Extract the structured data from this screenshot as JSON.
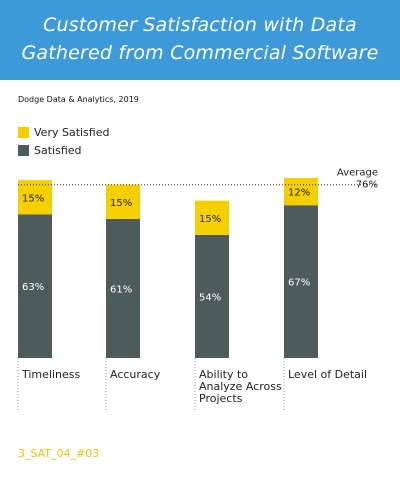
{
  "header": {
    "title_line1": "Customer Satisfaction with Data",
    "title_line2": "Gathered from Commercial Software"
  },
  "source": "Dodge Data & Analytics, 2019",
  "legend": {
    "very_satisfied": "Very Satisfied",
    "satisfied": "Satisfied"
  },
  "average": {
    "label": "Average",
    "value_label": "76%",
    "value": 76
  },
  "footer_code": "3_SAT_04_#03",
  "colors": {
    "banner": "#3d9ad8",
    "very_satisfied": "#f5d000",
    "satisfied": "#4d5b5b",
    "footer_code": "#f2c000"
  },
  "chart_data": {
    "type": "bar",
    "stacked": true,
    "categories": [
      "Timeliness",
      "Accuracy",
      "Ability to Analyze Across Projects",
      "Level of Detail"
    ],
    "category_lines": [
      [
        "Timeliness"
      ],
      [
        "Accuracy"
      ],
      [
        "Ability to",
        "Analyze Across",
        "Projects"
      ],
      [
        "Level of Detail"
      ]
    ],
    "series": [
      {
        "name": "Satisfied",
        "values": [
          63,
          61,
          54,
          67
        ]
      },
      {
        "name": "Very Satisfied",
        "values": [
          15,
          15,
          15,
          12
        ]
      }
    ],
    "reference_line": {
      "label": "Average",
      "value": 76
    },
    "legend_position": "top-left",
    "grid": false
  }
}
